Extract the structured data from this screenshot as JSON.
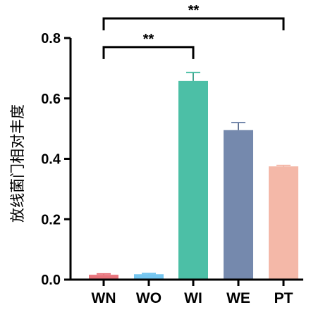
{
  "chart_data": {
    "type": "bar",
    "title": "",
    "xlabel": "",
    "ylabel": "放线菌门相对丰度",
    "categories": [
      "WN",
      "WO",
      "WI",
      "WE",
      "PT"
    ],
    "values": [
      0.016,
      0.018,
      0.658,
      0.495,
      0.375
    ],
    "errors": [
      0.003,
      0.002,
      0.028,
      0.025,
      0.003
    ],
    "colors": [
      "#E8747C",
      "#74C6F0",
      "#4CBFA6",
      "#7589AD",
      "#F4B8A8"
    ],
    "ylim": [
      0,
      0.8
    ],
    "yticks": [
      0.0,
      0.2,
      0.4,
      0.6,
      0.8
    ],
    "ytick_labels": [
      "0.0",
      "0.2",
      "0.4",
      "0.6",
      "0.8"
    ],
    "grid": false,
    "legend": "none",
    "significance": [
      {
        "from": "WN",
        "to": "WI",
        "label": "**",
        "y": 0.77
      },
      {
        "from": "WN",
        "to": "PT",
        "label": "**",
        "y": 0.865
      }
    ]
  }
}
